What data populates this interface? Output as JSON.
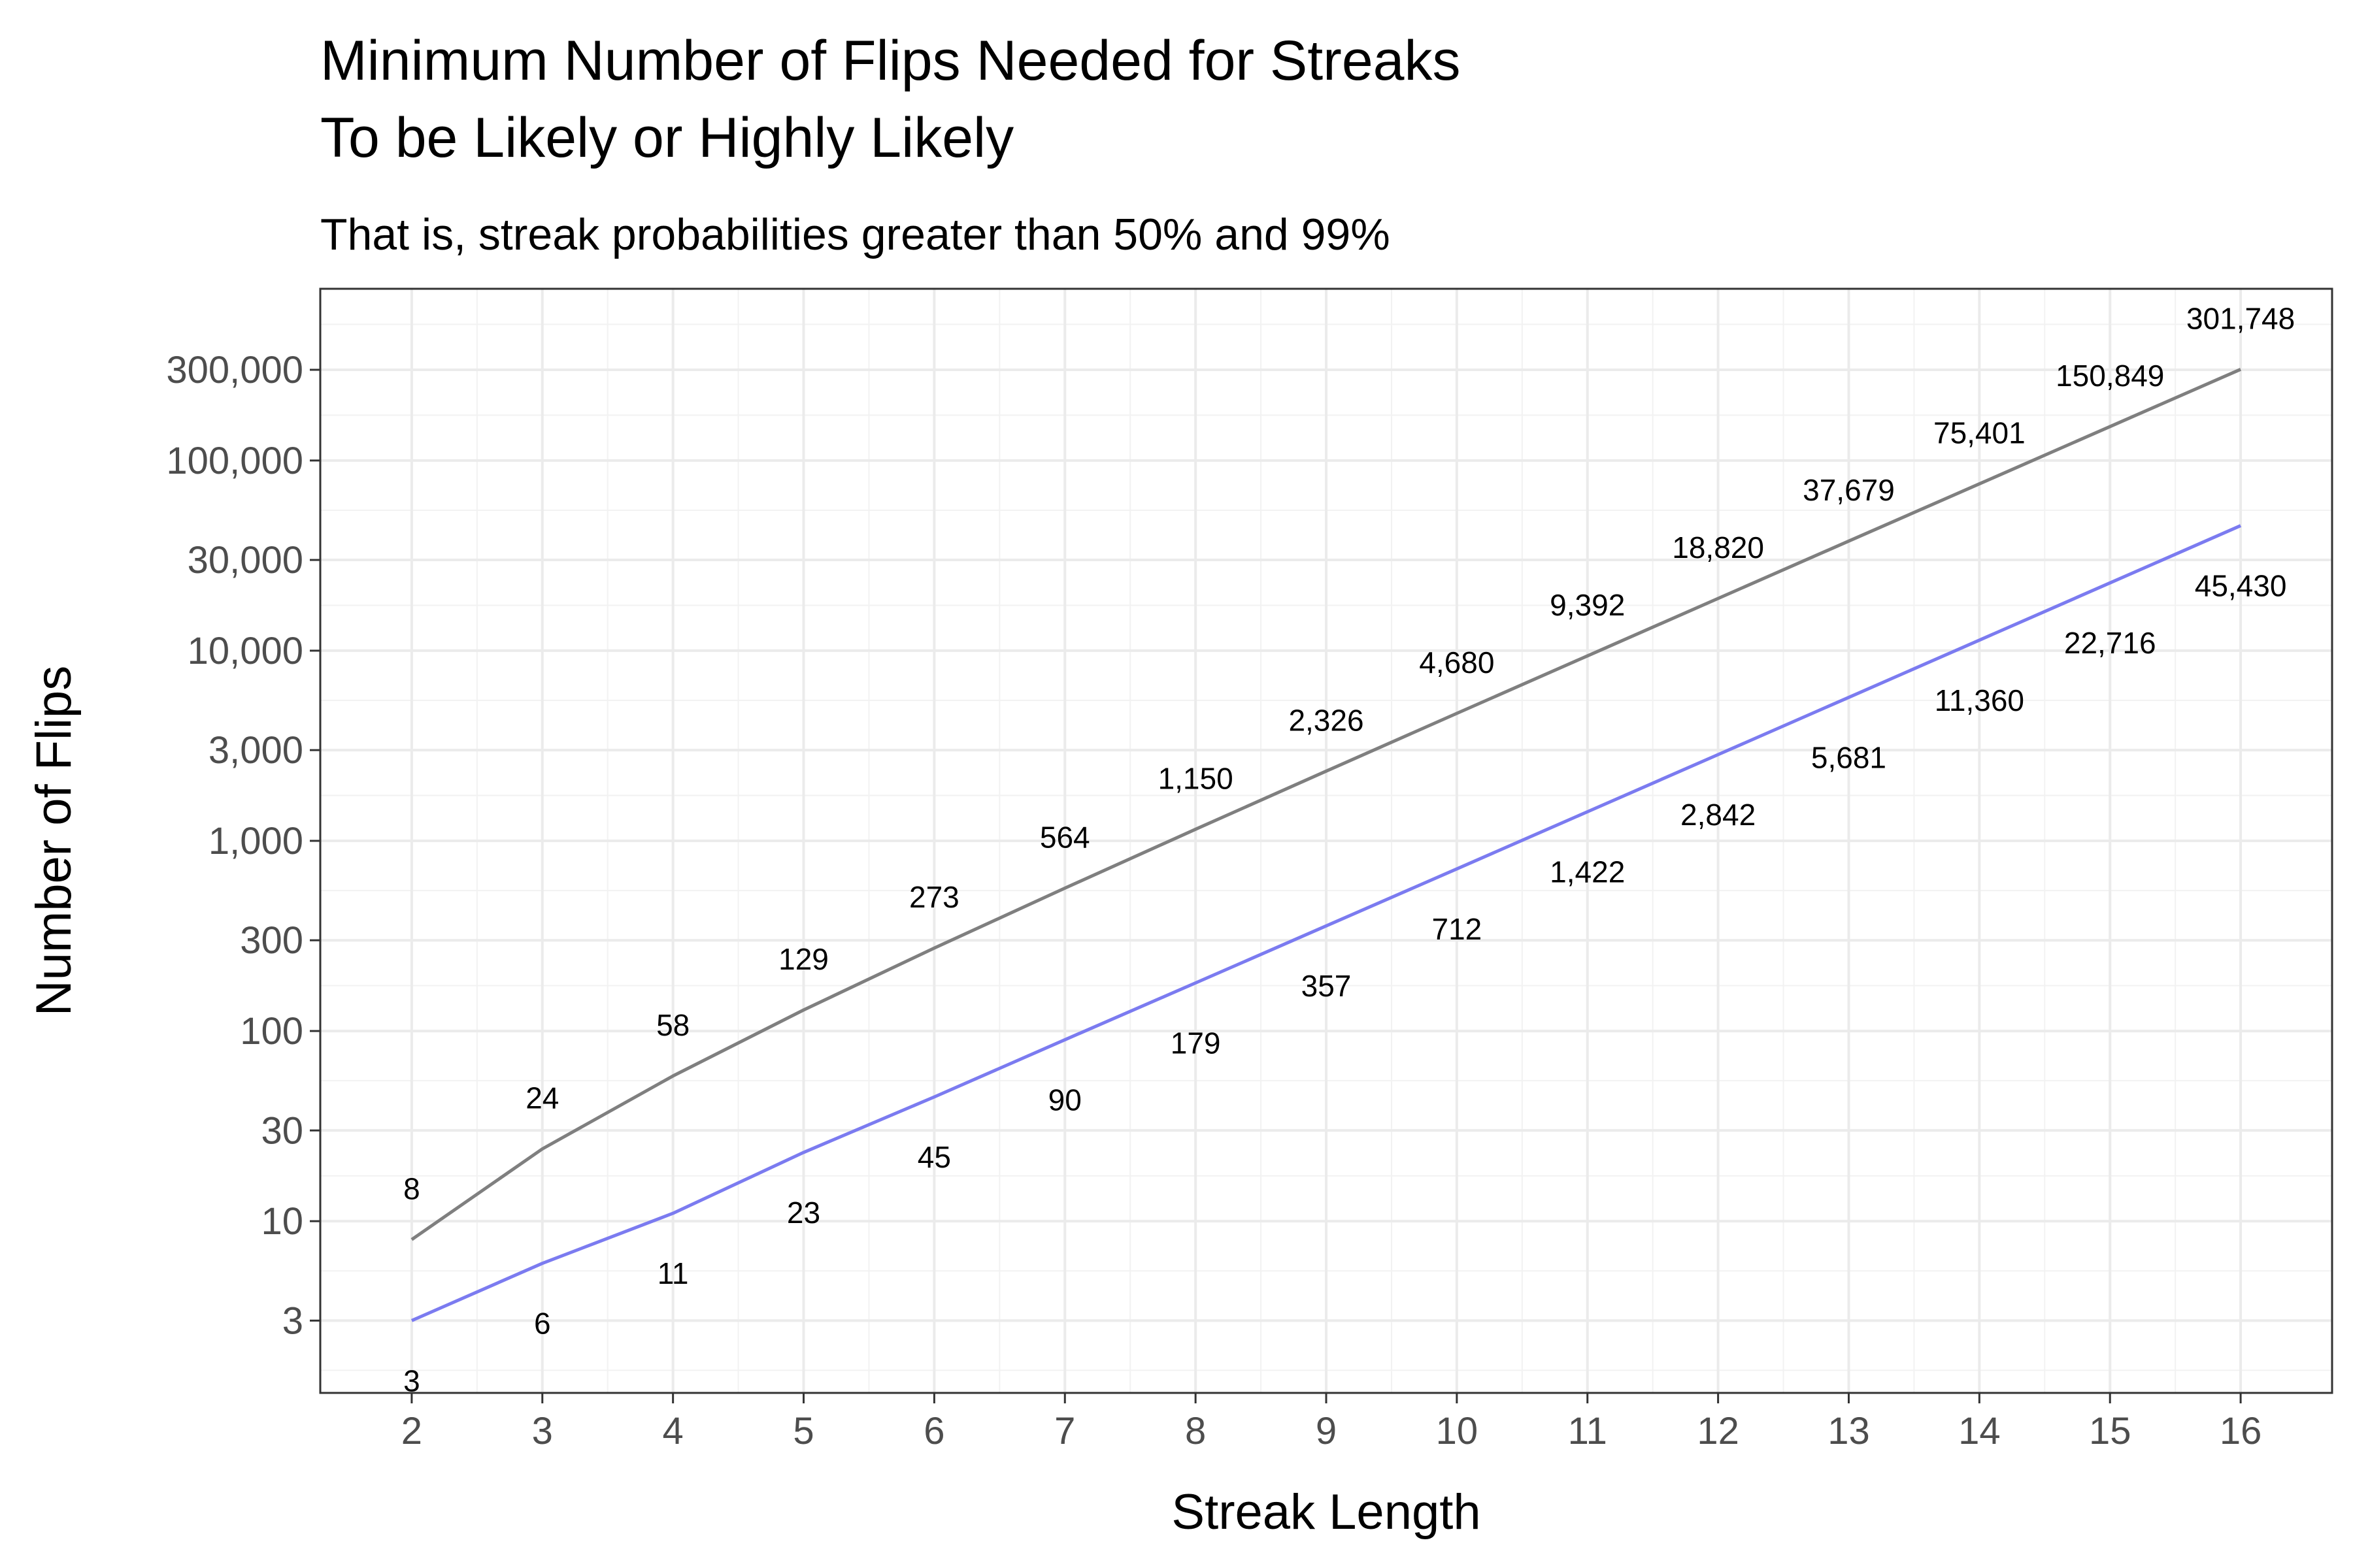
{
  "chart_data": {
    "type": "line",
    "title_lines": [
      "Minimum Number of Flips Needed for Streaks",
      "To be Likely or Highly Likely"
    ],
    "subtitle": "That is, streak probabilities greater than 50% and 99%",
    "xlabel": "Streak Length",
    "ylabel": "Number of Flips",
    "y_scale": "log10",
    "xlim": [
      1.3,
      16.7
    ],
    "ylim": [
      1.25,
      800000
    ],
    "x_ticks": [
      2,
      3,
      4,
      5,
      6,
      7,
      8,
      9,
      10,
      11,
      12,
      13,
      14,
      15,
      16
    ],
    "x_tick_labels": [
      "2",
      "3",
      "4",
      "5",
      "6",
      "7",
      "8",
      "9",
      "10",
      "11",
      "12",
      "13",
      "14",
      "15",
      "16"
    ],
    "y_ticks": [
      3,
      10,
      30,
      100,
      300,
      1000,
      3000,
      10000,
      30000,
      100000,
      300000
    ],
    "y_tick_labels": [
      "3",
      "10",
      "30",
      "100",
      "300",
      "1,000",
      "3,000",
      "10,000",
      "30,000",
      "100,000",
      "300,000"
    ],
    "grid": true,
    "legend": "none",
    "series": [
      {
        "color": "#7f7f7f",
        "label_position": "above",
        "x": [
          2,
          3,
          4,
          5,
          6,
          7,
          8,
          9,
          10,
          11,
          12,
          13,
          14,
          15,
          16
        ],
        "values": [
          8,
          24,
          58,
          129,
          273,
          564,
          1150,
          2326,
          4680,
          9392,
          18820,
          37679,
          75401,
          150849,
          301748
        ],
        "labels": [
          "8",
          "24",
          "58",
          "129",
          "273",
          "564",
          "1,150",
          "2,326",
          "4,680",
          "9,392",
          "18,820",
          "37,679",
          "75,401",
          "150,849",
          "301,748"
        ]
      },
      {
        "color": "#7b7bf0",
        "label_position": "below",
        "x": [
          2,
          3,
          4,
          5,
          6,
          7,
          8,
          9,
          10,
          11,
          12,
          13,
          14,
          15,
          16
        ],
        "values": [
          3,
          6,
          11,
          23,
          45,
          90,
          179,
          357,
          712,
          1422,
          2842,
          5681,
          11360,
          22716,
          45430
        ],
        "labels": [
          "3",
          "6",
          "11",
          "23",
          "45",
          "90",
          "179",
          "357",
          "712",
          "1,422",
          "2,842",
          "5,681",
          "11,360",
          "22,716",
          "45,430"
        ]
      }
    ]
  }
}
